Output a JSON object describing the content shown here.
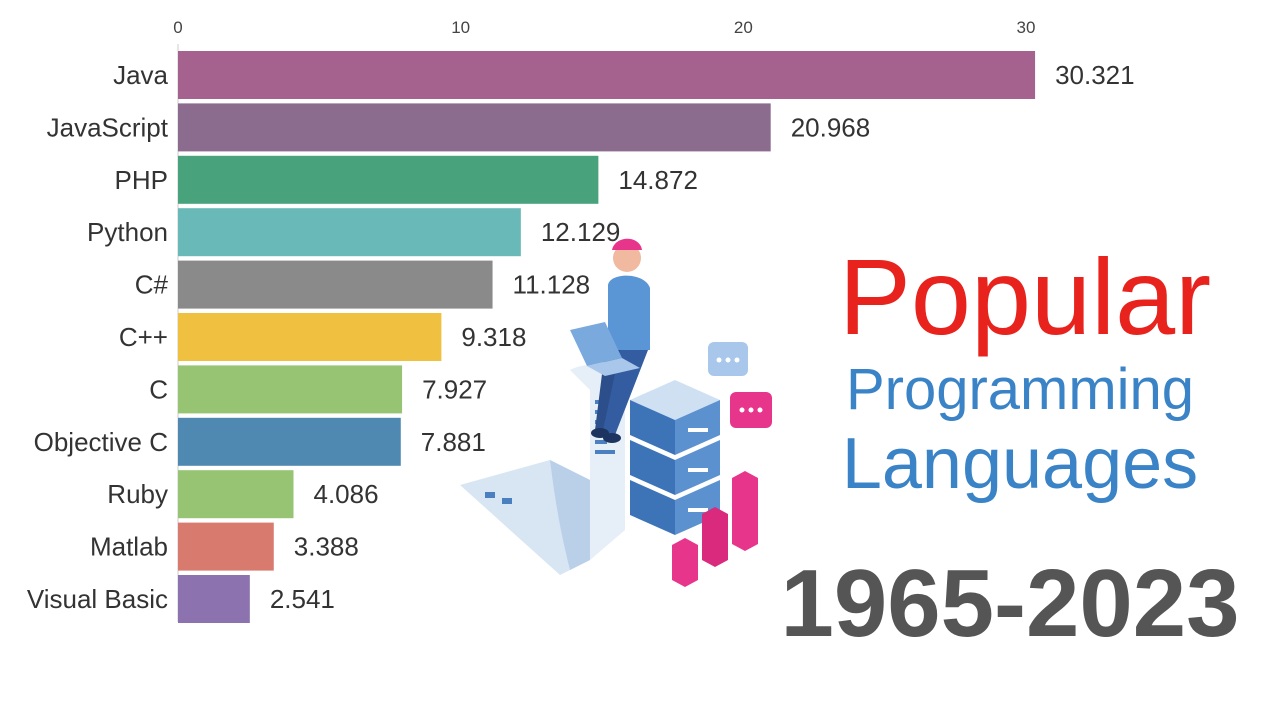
{
  "chart_data": {
    "type": "bar",
    "orientation": "horizontal",
    "categories": [
      "Java",
      "JavaScript",
      "PHP",
      "Python",
      "C#",
      "C++",
      "C",
      "Objective C",
      "Ruby",
      "Matlab",
      "Visual Basic"
    ],
    "values": [
      30.321,
      20.968,
      14.872,
      12.129,
      11.128,
      9.318,
      7.927,
      7.881,
      4.086,
      3.388,
      2.541
    ],
    "value_labels": [
      "30.321",
      "20.968",
      "14.872",
      "12.129",
      "11.128",
      "9.318",
      "7.927",
      "7.881",
      "4.086",
      "3.388",
      "2.541"
    ],
    "colors": [
      "#a6628f",
      "#8c6c8e",
      "#48a27c",
      "#68b9b8",
      "#8a8a8a",
      "#f0c040",
      "#96c472",
      "#4f88b0",
      "#96c472",
      "#d97a6e",
      "#8c72ae"
    ],
    "xlim": [
      0,
      30
    ],
    "xticks": [
      0,
      10,
      20,
      30
    ],
    "grid": false,
    "legend": "none"
  },
  "overlay": {
    "title_line1": "Popular",
    "title_line2": "Programming",
    "title_line3": "Languages",
    "years": "1965-2023",
    "illustration_icons": [
      "person-with-laptop-icon",
      "server-stack-icon",
      "chat-bubble-icon",
      "bar-chart-icon",
      "paper-scroll-icon"
    ]
  }
}
